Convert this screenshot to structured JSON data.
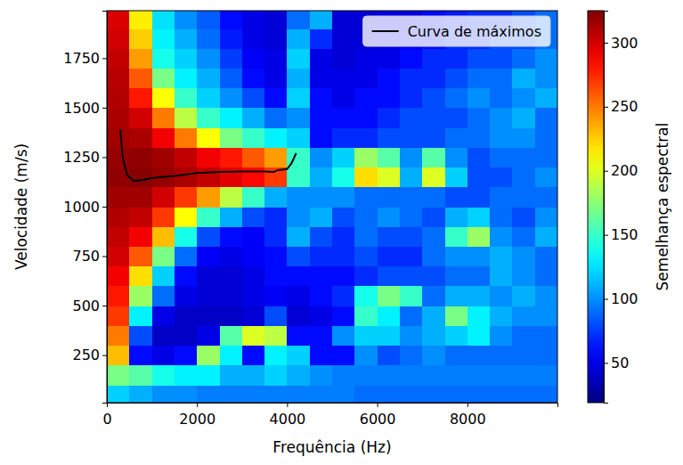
{
  "chart_data": {
    "type": "heatmap",
    "xlabel": "Frequência (Hz)",
    "ylabel": "Velocidade (m/s)",
    "x": [
      250,
      750,
      1250,
      1750,
      2250,
      2750,
      3250,
      3750,
      4250,
      4750,
      5250,
      5750,
      6250,
      6750,
      7250,
      7750,
      8250,
      8750,
      9250,
      9750
    ],
    "y": [
      50,
      150,
      250,
      350,
      450,
      550,
      650,
      750,
      850,
      950,
      1050,
      1150,
      1250,
      1350,
      1450,
      1550,
      1650,
      1750,
      1850,
      1950
    ],
    "z": [
      [
        120,
        110,
        100,
        100,
        95,
        95,
        95,
        95,
        95,
        95,
        95,
        90,
        90,
        90,
        90,
        90,
        90,
        90,
        90,
        90
      ],
      [
        170,
        160,
        140,
        130,
        130,
        110,
        110,
        120,
        110,
        100,
        95,
        95,
        95,
        95,
        95,
        95,
        95,
        95,
        95,
        95
      ],
      [
        230,
        60,
        50,
        60,
        180,
        130,
        60,
        130,
        120,
        60,
        60,
        100,
        80,
        90,
        100,
        90,
        90,
        90,
        90,
        90
      ],
      [
        250,
        80,
        40,
        40,
        50,
        160,
        200,
        190,
        60,
        60,
        100,
        120,
        120,
        100,
        110,
        120,
        130,
        100,
        90,
        90
      ],
      [
        270,
        130,
        50,
        40,
        40,
        40,
        45,
        80,
        45,
        50,
        60,
        150,
        130,
        90,
        110,
        170,
        130,
        110,
        100,
        100
      ],
      [
        280,
        180,
        90,
        50,
        45,
        45,
        50,
        55,
        50,
        60,
        70,
        140,
        170,
        150,
        90,
        110,
        110,
        100,
        110,
        100
      ],
      [
        290,
        220,
        120,
        60,
        45,
        45,
        50,
        60,
        60,
        60,
        60,
        70,
        80,
        80,
        80,
        90,
        90,
        110,
        100,
        90
      ],
      [
        300,
        260,
        170,
        90,
        55,
        50,
        55,
        60,
        80,
        70,
        70,
        80,
        70,
        70,
        90,
        100,
        100,
        110,
        100,
        90
      ],
      [
        305,
        290,
        230,
        140,
        80,
        60,
        55,
        70,
        110,
        80,
        70,
        90,
        80,
        80,
        90,
        150,
        180,
        100,
        90,
        110
      ],
      [
        310,
        305,
        270,
        210,
        150,
        110,
        80,
        70,
        100,
        110,
        80,
        90,
        100,
        90,
        80,
        110,
        120,
        90,
        80,
        100
      ],
      [
        315,
        315,
        300,
        270,
        240,
        190,
        150,
        110,
        100,
        100,
        100,
        90,
        90,
        90,
        90,
        80,
        80,
        90,
        90,
        90
      ],
      [
        320,
        322,
        318,
        312,
        305,
        295,
        285,
        270,
        150,
        110,
        140,
        220,
        200,
        110,
        200,
        120,
        80,
        80,
        90,
        100
      ],
      [
        318,
        320,
        315,
        305,
        290,
        280,
        260,
        240,
        150,
        100,
        120,
        180,
        160,
        100,
        160,
        100,
        80,
        90,
        90,
        90
      ],
      [
        315,
        312,
        290,
        250,
        210,
        170,
        150,
        130,
        120,
        60,
        70,
        70,
        80,
        80,
        80,
        90,
        90,
        100,
        100,
        90
      ],
      [
        312,
        300,
        250,
        190,
        150,
        130,
        110,
        90,
        100,
        60,
        60,
        60,
        70,
        80,
        80,
        80,
        90,
        100,
        110,
        90
      ],
      [
        310,
        280,
        210,
        150,
        120,
        100,
        80,
        60,
        120,
        60,
        50,
        60,
        60,
        70,
        80,
        90,
        100,
        90,
        100,
        110
      ],
      [
        308,
        260,
        170,
        130,
        110,
        85,
        60,
        50,
        110,
        50,
        50,
        50,
        60,
        70,
        70,
        80,
        90,
        90,
        110,
        100
      ],
      [
        305,
        240,
        140,
        120,
        100,
        75,
        55,
        50,
        120,
        50,
        45,
        50,
        50,
        60,
        70,
        70,
        80,
        80,
        90,
        100
      ],
      [
        300,
        225,
        130,
        110,
        90,
        65,
        50,
        45,
        110,
        70,
        45,
        45,
        50,
        55,
        60,
        70,
        70,
        80,
        80,
        90
      ],
      [
        298,
        215,
        125,
        100,
        85,
        60,
        50,
        45,
        90,
        110,
        45,
        45,
        50,
        50,
        60,
        65,
        70,
        70,
        80,
        90
      ]
    ],
    "xlim": [
      0,
      10000
    ],
    "ylim": [
      10,
      1990
    ],
    "xticks": [
      0,
      2000,
      4000,
      6000,
      8000
    ],
    "yticks": [
      250,
      500,
      750,
      1000,
      1250,
      1500,
      1750
    ],
    "zlim": [
      19,
      325
    ],
    "zticks": [
      50,
      100,
      150,
      200,
      250,
      300
    ],
    "colorbar_label": "Semelhança espectral",
    "legend": "upper right",
    "series": [
      {
        "name": "Curva de máximos",
        "type": "line",
        "color": "#000000",
        "x": [
          300,
          350,
          450,
          600,
          800,
          1000,
          1500,
          2000,
          2500,
          3000,
          3500,
          3700,
          3800,
          4000,
          4100,
          4200
        ],
        "values": [
          1390,
          1250,
          1160,
          1130,
          1135,
          1145,
          1155,
          1170,
          1175,
          1178,
          1178,
          1175,
          1185,
          1190,
          1220,
          1270
        ]
      }
    ]
  }
}
